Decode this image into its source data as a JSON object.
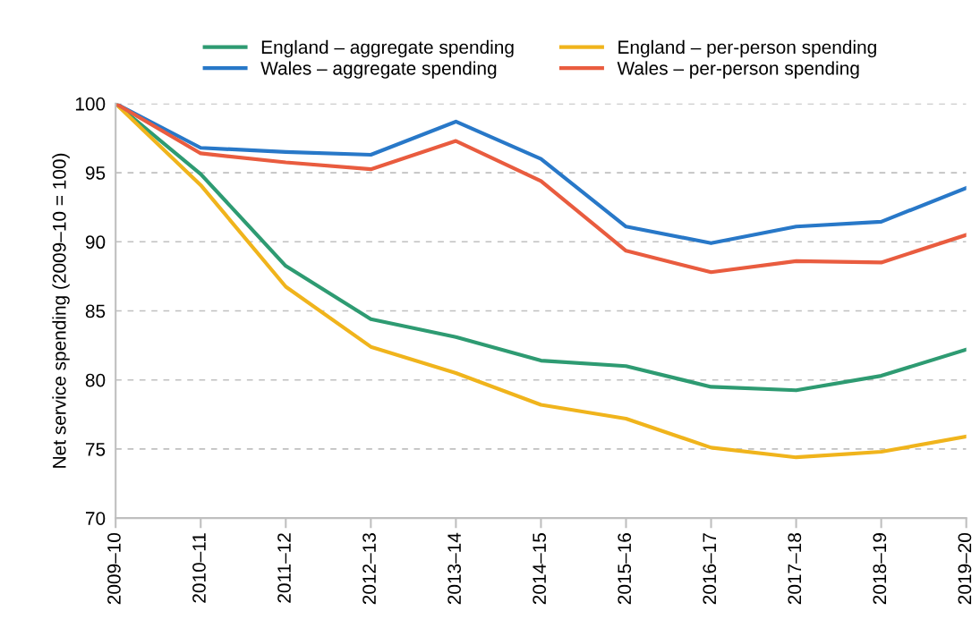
{
  "chart_data": {
    "type": "line",
    "ylabel": "Net service spending (2009–10 = 100)",
    "categories": [
      "2009–10",
      "2010–11",
      "2011–12",
      "2012–13",
      "2013–14",
      "2014–15",
      "2015–16",
      "2016–17",
      "2017–18",
      "2018–19",
      "2019–20"
    ],
    "series": [
      {
        "name": "England – aggregate spending",
        "color": "#2e9b72",
        "values": [
          100,
          94.9,
          88.25,
          84.4,
          83.1,
          81.4,
          81.0,
          79.5,
          79.25,
          80.3,
          82.2
        ]
      },
      {
        "name": "England – per-person spending",
        "color": "#f0b41c",
        "values": [
          100,
          94.1,
          86.75,
          82.4,
          80.5,
          78.2,
          77.2,
          75.1,
          74.4,
          74.8,
          75.9
        ]
      },
      {
        "name": "Wales – aggregate spending",
        "color": "#2878c8",
        "values": [
          100,
          96.8,
          96.5,
          96.3,
          98.7,
          96.0,
          91.1,
          89.9,
          91.1,
          91.45,
          93.9
        ]
      },
      {
        "name": "Wales – per-person spending",
        "color": "#e95c3f",
        "values": [
          100,
          96.4,
          95.75,
          95.25,
          97.3,
          94.4,
          89.35,
          87.8,
          88.6,
          88.5,
          90.5
        ]
      }
    ],
    "ylim": [
      70,
      100
    ],
    "yticks": [
      70,
      75,
      80,
      85,
      90,
      95,
      100
    ],
    "grid": "y",
    "legend": "top",
    "marker": "none",
    "line_style": "solid"
  }
}
